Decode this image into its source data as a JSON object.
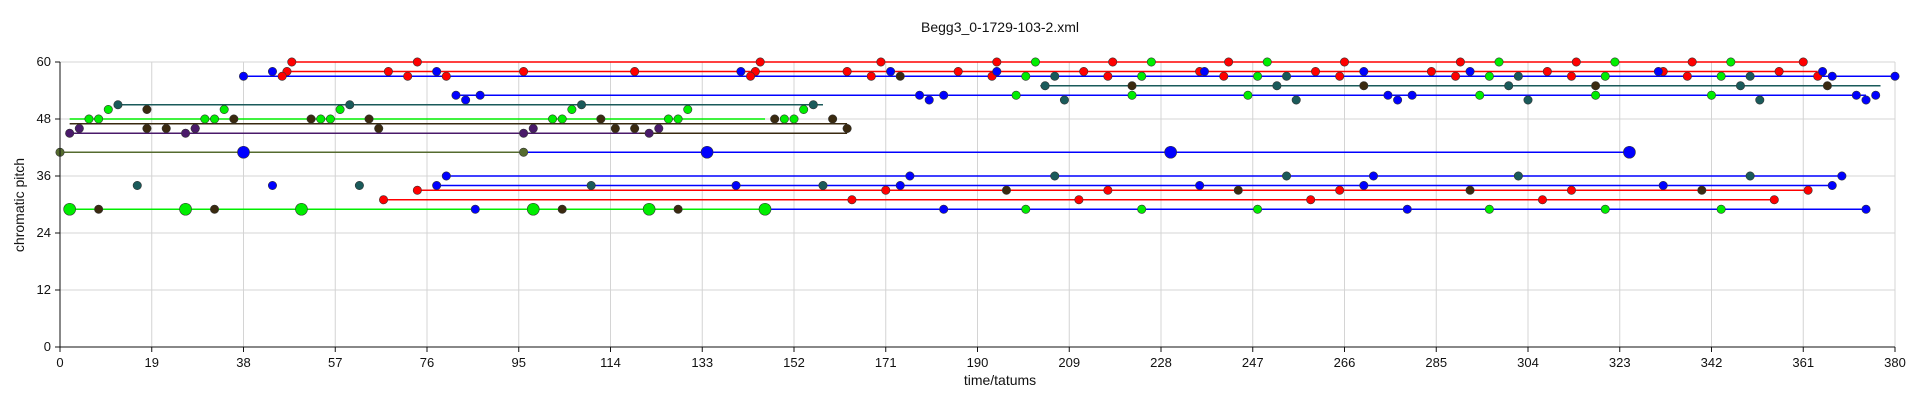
{
  "chart_data": {
    "type": "scatter",
    "title": "Begg3_0-1729-103-2.xml",
    "xlabel": "time/tatums",
    "ylabel": "chromatic pitch",
    "xlim": [
      0,
      380
    ],
    "ylim": [
      0,
      60
    ],
    "xticks": [
      0,
      19,
      38,
      57,
      76,
      95,
      114,
      133,
      152,
      171,
      190,
      209,
      228,
      247,
      266,
      285,
      304,
      323,
      342,
      361,
      380
    ],
    "yticks": [
      0,
      12,
      24,
      36,
      48,
      60
    ],
    "grid": true,
    "series": [
      {
        "color": "#ff0000",
        "lines": [
          {
            "x0": 48,
            "x1": 361,
            "y": 60
          },
          {
            "x0": 47,
            "x1": 364,
            "y": 58
          },
          {
            "x0": 46,
            "x1": 366,
            "y": 57
          },
          {
            "x0": 67,
            "x1": 355,
            "y": 31
          },
          {
            "x0": 74,
            "x1": 362,
            "y": 33
          }
        ],
        "points": [
          [
            48,
            60
          ],
          [
            74,
            60
          ],
          [
            145,
            60
          ],
          [
            170,
            60
          ],
          [
            194,
            60
          ],
          [
            218,
            60
          ],
          [
            242,
            60
          ],
          [
            266,
            60
          ],
          [
            290,
            60
          ],
          [
            314,
            60
          ],
          [
            338,
            60
          ],
          [
            361,
            60
          ],
          [
            47,
            58
          ],
          [
            68,
            58
          ],
          [
            96,
            58
          ],
          [
            119,
            58
          ],
          [
            144,
            58
          ],
          [
            163,
            58
          ],
          [
            186,
            58
          ],
          [
            212,
            58
          ],
          [
            236,
            58
          ],
          [
            260,
            58
          ],
          [
            284,
            58
          ],
          [
            308,
            58
          ],
          [
            332,
            58
          ],
          [
            356,
            58
          ],
          [
            46,
            57
          ],
          [
            72,
            57
          ],
          [
            80,
            57
          ],
          [
            143,
            57
          ],
          [
            168,
            57
          ],
          [
            193,
            57
          ],
          [
            217,
            57
          ],
          [
            241,
            57
          ],
          [
            265,
            57
          ],
          [
            289,
            57
          ],
          [
            313,
            57
          ],
          [
            337,
            57
          ],
          [
            364,
            57
          ],
          [
            67,
            31
          ],
          [
            164,
            31
          ],
          [
            211,
            31
          ],
          [
            259,
            31
          ],
          [
            307,
            31
          ],
          [
            355,
            31
          ],
          [
            74,
            33
          ],
          [
            171,
            33
          ],
          [
            217,
            33
          ],
          [
            265,
            33
          ],
          [
            313,
            33
          ],
          [
            362,
            33
          ]
        ]
      },
      {
        "color": "#0000ff",
        "lines": [
          {
            "x0": 38,
            "x1": 380,
            "y": 57
          },
          {
            "x0": 82,
            "x1": 374,
            "y": 53
          },
          {
            "x0": 38,
            "x1": 325,
            "y": 41
          },
          {
            "x0": 80,
            "x1": 369,
            "y": 36
          },
          {
            "x0": 78,
            "x1": 367,
            "y": 34
          },
          {
            "x0": 86,
            "x1": 374,
            "y": 29
          }
        ],
        "points": [
          [
            38,
            57
          ],
          [
            44,
            58
          ],
          [
            78,
            58
          ],
          [
            141,
            58
          ],
          [
            172,
            58
          ],
          [
            194,
            58
          ],
          [
            237,
            58
          ],
          [
            270,
            58
          ],
          [
            292,
            58
          ],
          [
            331,
            58
          ],
          [
            365,
            58
          ],
          [
            367,
            57
          ],
          [
            380,
            57
          ],
          [
            82,
            53
          ],
          [
            84,
            52
          ],
          [
            87,
            53
          ],
          [
            178,
            53
          ],
          [
            180,
            52
          ],
          [
            183,
            53
          ],
          [
            275,
            53
          ],
          [
            277,
            52
          ],
          [
            280,
            53
          ],
          [
            372,
            53
          ],
          [
            374,
            52
          ],
          [
            376,
            53
          ],
          [
            38,
            41
          ],
          [
            134,
            41
          ],
          [
            230,
            41
          ],
          [
            325,
            41
          ],
          [
            44,
            34
          ],
          [
            78,
            34
          ],
          [
            140,
            34
          ],
          [
            174,
            34
          ],
          [
            236,
            34
          ],
          [
            270,
            34
          ],
          [
            332,
            34
          ],
          [
            367,
            34
          ],
          [
            80,
            36
          ],
          [
            176,
            36
          ],
          [
            272,
            36
          ],
          [
            369,
            36
          ],
          [
            86,
            29
          ],
          [
            183,
            29
          ],
          [
            279,
            29
          ],
          [
            374,
            29
          ]
        ]
      },
      {
        "color": "#00ee00",
        "lines": [
          {
            "x0": 2,
            "x1": 146,
            "y": 29
          },
          {
            "x0": 2,
            "x1": 146,
            "y": 48
          }
        ],
        "points": [
          [
            2,
            29
          ],
          [
            26,
            29
          ],
          [
            50,
            29
          ],
          [
            98,
            29
          ],
          [
            122,
            29
          ],
          [
            146,
            29
          ],
          [
            200,
            29
          ],
          [
            224,
            29
          ],
          [
            248,
            29
          ],
          [
            296,
            29
          ],
          [
            320,
            29
          ],
          [
            344,
            29
          ],
          [
            6,
            48
          ],
          [
            8,
            48
          ],
          [
            30,
            48
          ],
          [
            32,
            48
          ],
          [
            54,
            48
          ],
          [
            56,
            48
          ],
          [
            102,
            48
          ],
          [
            104,
            48
          ],
          [
            126,
            48
          ],
          [
            128,
            48
          ],
          [
            150,
            48
          ],
          [
            152,
            48
          ],
          [
            10,
            50
          ],
          [
            34,
            50
          ],
          [
            58,
            50
          ],
          [
            106,
            50
          ],
          [
            130,
            50
          ],
          [
            154,
            50
          ],
          [
            198,
            53
          ],
          [
            222,
            53
          ],
          [
            246,
            53
          ],
          [
            294,
            53
          ],
          [
            318,
            53
          ],
          [
            342,
            53
          ],
          [
            202,
            60
          ],
          [
            226,
            60
          ],
          [
            250,
            60
          ],
          [
            298,
            60
          ],
          [
            322,
            60
          ],
          [
            346,
            60
          ],
          [
            200,
            57
          ],
          [
            224,
            57
          ],
          [
            248,
            57
          ],
          [
            296,
            57
          ],
          [
            320,
            57
          ],
          [
            344,
            57
          ]
        ]
      },
      {
        "color": "#1a5a5a",
        "lines": [
          {
            "x0": 12,
            "x1": 158,
            "y": 51
          },
          {
            "x0": 203,
            "x1": 377,
            "y": 55
          }
        ],
        "points": [
          [
            12,
            51
          ],
          [
            60,
            51
          ],
          [
            108,
            51
          ],
          [
            156,
            51
          ],
          [
            204,
            55
          ],
          [
            208,
            52
          ],
          [
            252,
            55
          ],
          [
            256,
            52
          ],
          [
            300,
            55
          ],
          [
            304,
            52
          ],
          [
            348,
            55
          ],
          [
            352,
            52
          ],
          [
            16,
            34
          ],
          [
            62,
            34
          ],
          [
            110,
            34
          ],
          [
            158,
            34
          ],
          [
            206,
            36
          ],
          [
            254,
            36
          ],
          [
            302,
            36
          ],
          [
            350,
            36
          ],
          [
            206,
            57
          ],
          [
            254,
            57
          ],
          [
            302,
            57
          ],
          [
            350,
            57
          ]
        ]
      },
      {
        "color": "#3a2a10",
        "lines": [
          {
            "x0": 2,
            "x1": 163,
            "y": 45
          },
          {
            "x0": 2,
            "x1": 163,
            "y": 47
          }
        ],
        "points": [
          [
            8,
            29
          ],
          [
            32,
            29
          ],
          [
            104,
            29
          ],
          [
            128,
            29
          ],
          [
            18,
            46
          ],
          [
            22,
            46
          ],
          [
            28,
            46
          ],
          [
            66,
            46
          ],
          [
            115,
            46
          ],
          [
            119,
            46
          ],
          [
            163,
            46
          ],
          [
            18,
            50
          ],
          [
            36,
            48
          ],
          [
            52,
            48
          ],
          [
            64,
            48
          ],
          [
            112,
            48
          ],
          [
            148,
            48
          ],
          [
            160,
            48
          ],
          [
            196,
            33
          ],
          [
            244,
            33
          ],
          [
            292,
            33
          ],
          [
            340,
            33
          ],
          [
            270,
            55
          ],
          [
            318,
            55
          ],
          [
            366,
            55
          ],
          [
            222,
            55
          ],
          [
            174,
            57
          ]
        ]
      },
      {
        "color": "#4a1a6a",
        "lines": [
          {
            "x0": 2,
            "x1": 120,
            "y": 45
          }
        ],
        "points": [
          [
            2,
            45
          ],
          [
            4,
            46
          ],
          [
            26,
            45
          ],
          [
            28,
            46
          ],
          [
            96,
            45
          ],
          [
            98,
            46
          ],
          [
            122,
            45
          ],
          [
            124,
            46
          ]
        ]
      },
      {
        "color": "#556b2f",
        "lines": [
          {
            "x0": 0,
            "x1": 96,
            "y": 41
          }
        ],
        "points": [
          [
            0,
            41
          ],
          [
            96,
            41
          ]
        ]
      }
    ]
  }
}
